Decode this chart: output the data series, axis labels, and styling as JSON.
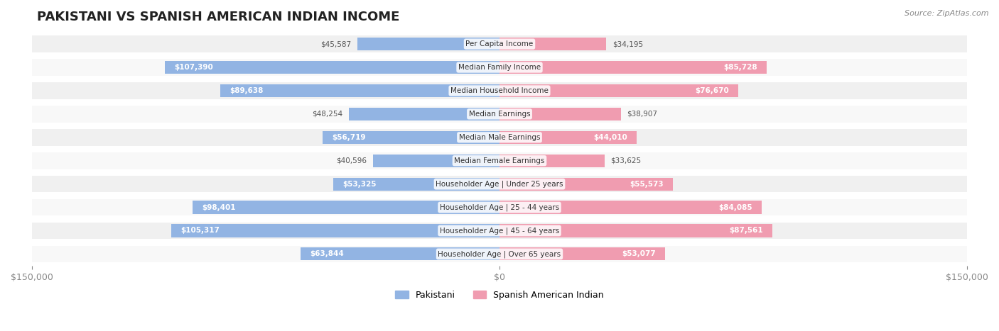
{
  "title": "PAKISTANI VS SPANISH AMERICAN INDIAN INCOME",
  "source": "Source: ZipAtlas.com",
  "categories": [
    "Per Capita Income",
    "Median Family Income",
    "Median Household Income",
    "Median Earnings",
    "Median Male Earnings",
    "Median Female Earnings",
    "Householder Age | Under 25 years",
    "Householder Age | 25 - 44 years",
    "Householder Age | 45 - 64 years",
    "Householder Age | Over 65 years"
  ],
  "pakistani_values": [
    45587,
    107390,
    89638,
    48254,
    56719,
    40596,
    53325,
    98401,
    105317,
    63844
  ],
  "spanish_ai_values": [
    34195,
    85728,
    76670,
    38907,
    44010,
    33625,
    55573,
    84085,
    87561,
    53077
  ],
  "pakistani_labels": [
    "$45,587",
    "$107,390",
    "$89,638",
    "$48,254",
    "$56,719",
    "$40,596",
    "$53,325",
    "$98,401",
    "$105,317",
    "$63,844"
  ],
  "spanish_ai_labels": [
    "$34,195",
    "$85,728",
    "$76,670",
    "$38,907",
    "$44,010",
    "$33,625",
    "$55,573",
    "$84,085",
    "$87,561",
    "$53,077"
  ],
  "max_value": 150000,
  "color_pakistani": "#92b4e3",
  "color_spanish_ai": "#f09cb0",
  "color_pakistani_dark": "#6699cc",
  "color_spanish_ai_dark": "#e87a96",
  "row_bg_color": "#f0f0f0",
  "row_alt_color": "#f8f8f8",
  "label_color_inside": "#ffffff",
  "label_color_outside": "#555555"
}
